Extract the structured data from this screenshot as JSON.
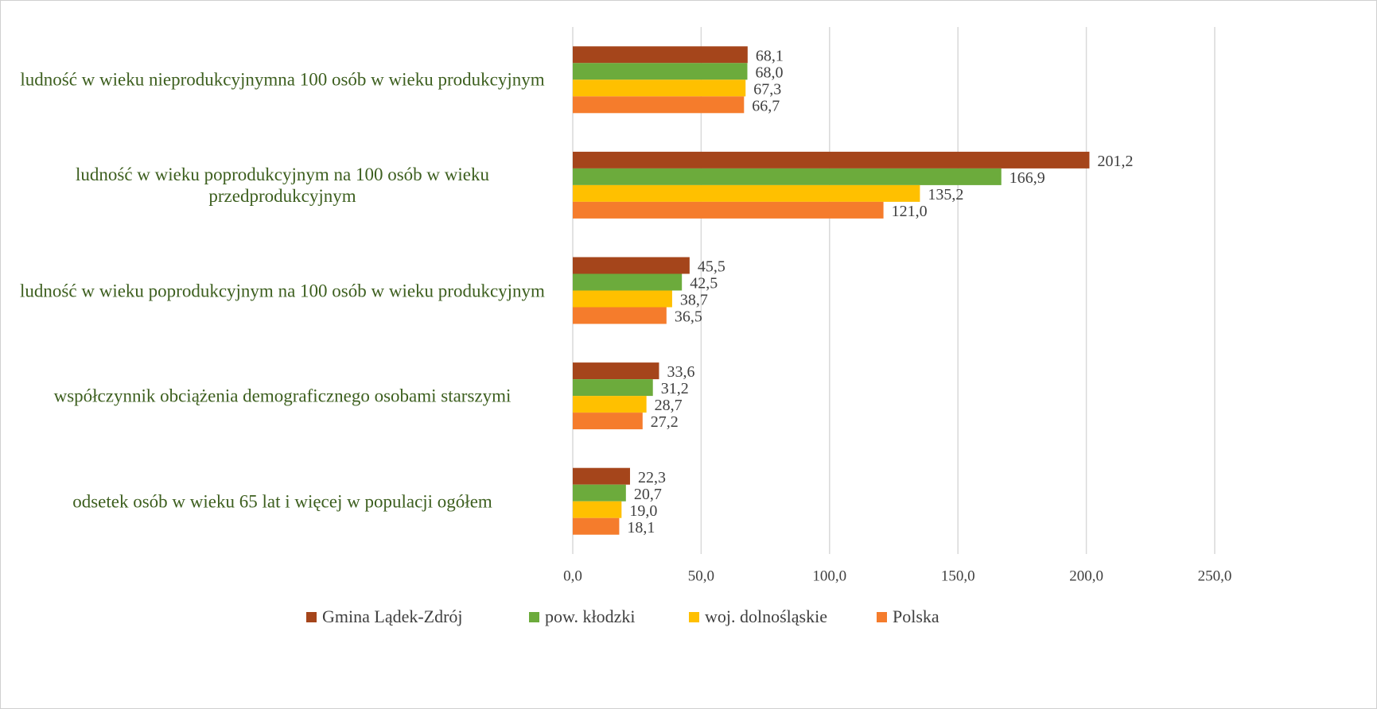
{
  "chart_data": {
    "type": "barh",
    "categories": [
      "ludność w wieku nieprodukcyjnymna 100 osób w wieku produkcyjnym",
      "ludność w wieku poprodukcyjnym na 100 osób w wieku przedprodukcyjnym",
      "ludność w wieku poprodukcyjnym na 100 osób w wieku produkcyjnym",
      "współczynnik obciążenia demograficznego osobami starszymi",
      "odsetek osób w wieku 65 lat i więcej w populacji ogółem"
    ],
    "series": [
      {
        "name": "Gmina Lądek-Zdrój",
        "color": "#a5451b",
        "values": [
          68.1,
          201.2,
          45.5,
          33.6,
          22.3
        ],
        "value_labels": [
          "68,1",
          "201,2",
          "45,5",
          "33,6",
          "22,3"
        ]
      },
      {
        "name": "pow. kłodzki",
        "color": "#6cab3c",
        "values": [
          68.0,
          166.9,
          42.5,
          31.2,
          20.7
        ],
        "value_labels": [
          "68,0",
          "166,9",
          "42,5",
          "31,2",
          "20,7"
        ]
      },
      {
        "name": "woj. dolnośląskie",
        "color": "#ffc000",
        "values": [
          67.3,
          135.2,
          38.7,
          28.7,
          19.0
        ],
        "value_labels": [
          "67,3",
          "135,2",
          "38,7",
          "28,7",
          "19,0"
        ]
      },
      {
        "name": "Polska",
        "color": "#f57c2c",
        "values": [
          66.7,
          121.0,
          36.5,
          27.2,
          18.1
        ],
        "value_labels": [
          "66,7",
          "121,0",
          "36,5",
          "27,2",
          "18,1"
        ]
      }
    ],
    "xlim": [
      0,
      250
    ],
    "xticks": [
      {
        "value": 0,
        "label": "0,0"
      },
      {
        "value": 50,
        "label": "50,0"
      },
      {
        "value": 100,
        "label": "100,0"
      },
      {
        "value": 150,
        "label": "150,0"
      },
      {
        "value": 200,
        "label": "200,0"
      },
      {
        "value": 250,
        "label": "250,0"
      }
    ],
    "grid": true,
    "legend": "bottom"
  }
}
